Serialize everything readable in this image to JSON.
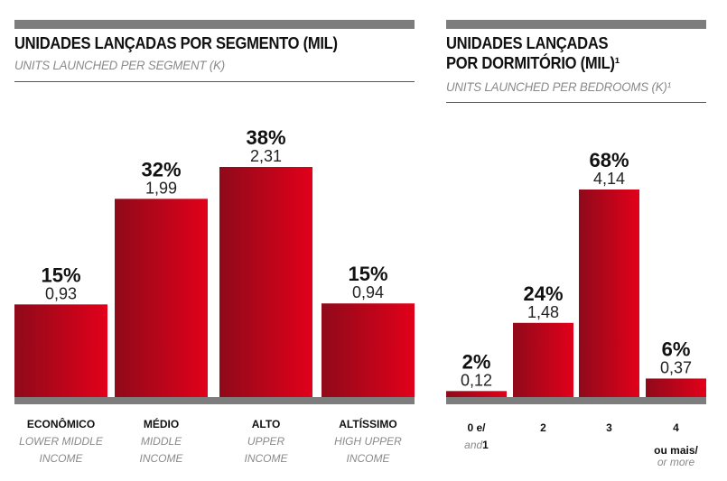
{
  "colors": {
    "bar_dark": "#8f0a1a",
    "bar_light": "#e2001a",
    "baseline": "#7d7d7d"
  },
  "left": {
    "title_pt": "UNIDADES LANÇADAS POR SEGMENTO (MIL)",
    "title_en": "UNITS LAUNCHED PER SEGMENT (K)"
  },
  "right": {
    "title_pt_line1": "UNIDADES LANÇADAS",
    "title_pt_line2": "POR DORMITÓRIO (MIL)¹",
    "title_en": "UNITS LAUNCHED PER BEDROOMS (K)¹"
  },
  "chart_data": [
    {
      "type": "bar",
      "title": "UNIDADES LANÇADAS POR SEGMENTO (MIL)",
      "subtitle": "UNITS LAUNCHED PER SEGMENT (K)",
      "categories": [
        {
          "pt": "ECONÔMICO",
          "en": [
            "LOWER MIDDLE",
            "INCOME"
          ]
        },
        {
          "pt": "MÉDIO",
          "en": [
            "MIDDLE",
            "INCOME"
          ]
        },
        {
          "pt": "ALTO",
          "en": [
            "UPPER",
            "INCOME"
          ]
        },
        {
          "pt": "ALTÍSSIMO",
          "en": [
            "HIGH UPPER",
            "INCOME"
          ]
        }
      ],
      "values": [
        0.93,
        1.99,
        2.31,
        0.94
      ],
      "value_labels": [
        "0,93",
        "1,99",
        "2,31",
        "0,94"
      ],
      "percent_labels": [
        "15%",
        "32%",
        "38%",
        "15%"
      ],
      "ylim": [
        0,
        2.31
      ]
    },
    {
      "type": "bar",
      "title": "UNIDADES LANÇADAS POR DORMITÓRIO (MIL)¹",
      "subtitle": "UNITS LAUNCHED PER BEDROOMS (K)¹",
      "categories": [
        {
          "pt": "0 e/",
          "en": [
            "and"
          ],
          "pt2": "1"
        },
        {
          "pt": "2",
          "en": []
        },
        {
          "pt": "3",
          "en": []
        },
        {
          "pt": "4",
          "en": [],
          "pt2": "ou mais/",
          "en2": "or more"
        }
      ],
      "values": [
        0.12,
        1.48,
        4.14,
        0.37
      ],
      "value_labels": [
        "0,12",
        "1,48",
        "4,14",
        "0,37"
      ],
      "percent_labels": [
        "2%",
        "24%",
        "68%",
        "6%"
      ],
      "ylim": [
        0,
        4.14
      ]
    }
  ]
}
